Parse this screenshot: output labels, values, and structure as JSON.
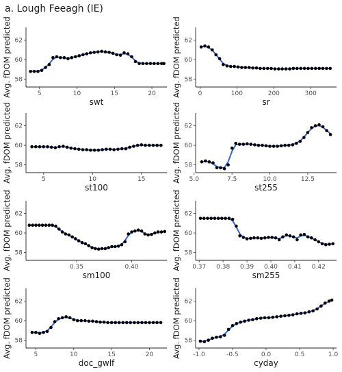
{
  "title": "a. Lough Feeagh (IE)",
  "colors": {
    "points": "#000000",
    "fit_line": "#3366dd",
    "axis": "#222222",
    "tick_text": "#4d4d4d"
  },
  "chart_data": [
    {
      "type": "scatter",
      "xlabel": "swt",
      "ylabel": "Avg. fDOM predicted",
      "xlim": [
        3.2,
        22
      ],
      "ylim": [
        57.2,
        63.3
      ],
      "xticks": [
        5,
        10,
        15,
        20
      ],
      "xtick_labels": [
        "5",
        "10",
        "15",
        "20"
      ],
      "yticks": [
        58,
        60,
        62
      ],
      "ytick_labels": [
        "58",
        "60",
        "62"
      ],
      "x": [
        3.8,
        4.3,
        4.8,
        5.3,
        5.8,
        6.3,
        6.8,
        7.3,
        7.8,
        8.3,
        8.8,
        9.3,
        9.8,
        10.3,
        10.8,
        11.3,
        11.8,
        12.3,
        12.8,
        13.3,
        13.8,
        14.3,
        14.8,
        15.3,
        15.8,
        16.3,
        16.8,
        17.3,
        17.8,
        18.3,
        18.8,
        19.3,
        19.8,
        20.3,
        20.8,
        21.3,
        21.6
      ],
      "y": [
        58.8,
        58.8,
        58.8,
        58.9,
        59.2,
        59.5,
        60.2,
        60.3,
        60.2,
        60.2,
        60.1,
        60.2,
        60.3,
        60.4,
        60.5,
        60.6,
        60.7,
        60.75,
        60.8,
        60.85,
        60.8,
        60.75,
        60.65,
        60.5,
        60.45,
        60.7,
        60.6,
        60.3,
        59.8,
        59.6,
        59.6,
        59.6,
        59.6,
        59.6,
        59.6,
        59.6,
        59.6
      ]
    },
    {
      "type": "scatter",
      "xlabel": "sr",
      "ylabel": "Avg. fDOM predicted",
      "xlim": [
        -12,
        370
      ],
      "ylim": [
        57.2,
        63.3
      ],
      "xticks": [
        0,
        100,
        200,
        300
      ],
      "xtick_labels": [
        "0",
        "100",
        "200",
        "300"
      ],
      "yticks": [
        58,
        60,
        62
      ],
      "ytick_labels": [
        "58",
        "60",
        "62"
      ],
      "x": [
        3,
        13,
        23,
        33,
        43,
        53,
        63,
        73,
        83,
        93,
        103,
        113,
        123,
        133,
        143,
        153,
        163,
        173,
        183,
        193,
        203,
        213,
        223,
        233,
        243,
        253,
        263,
        273,
        283,
        293,
        303,
        313,
        323,
        333,
        343,
        353
      ],
      "y": [
        61.3,
        61.4,
        61.3,
        61.0,
        60.5,
        60.1,
        59.5,
        59.35,
        59.3,
        59.3,
        59.25,
        59.2,
        59.2,
        59.2,
        59.15,
        59.15,
        59.1,
        59.1,
        59.1,
        59.1,
        59.05,
        59.05,
        59.05,
        59.05,
        59.05,
        59.1,
        59.1,
        59.1,
        59.1,
        59.1,
        59.1,
        59.1,
        59.1,
        59.1,
        59.1,
        59.1
      ]
    },
    {
      "type": "scatter",
      "xlabel": "st100",
      "ylabel": "Avg. fDOM predicted",
      "xlim": [
        3.2,
        17.6
      ],
      "ylim": [
        57.2,
        63.3
      ],
      "xticks": [
        5,
        10,
        15
      ],
      "xtick_labels": [
        "5",
        "10",
        "15"
      ],
      "yticks": [
        58,
        60,
        62
      ],
      "ytick_labels": [
        "58",
        "60",
        "62"
      ],
      "x": [
        3.8,
        4.2,
        4.6,
        5.0,
        5.4,
        5.8,
        6.2,
        6.6,
        7.0,
        7.4,
        7.8,
        8.2,
        8.6,
        9.0,
        9.4,
        9.8,
        10.2,
        10.6,
        11.0,
        11.4,
        11.8,
        12.2,
        12.6,
        13.0,
        13.4,
        13.8,
        14.2,
        14.6,
        15.0,
        15.4,
        15.8,
        16.2,
        16.6,
        17.0
      ],
      "y": [
        59.85,
        59.85,
        59.85,
        59.85,
        59.85,
        59.8,
        59.75,
        59.85,
        59.9,
        59.8,
        59.7,
        59.65,
        59.6,
        59.55,
        59.55,
        59.5,
        59.5,
        59.5,
        59.55,
        59.6,
        59.6,
        59.55,
        59.6,
        59.65,
        59.65,
        59.8,
        59.9,
        60.0,
        60.05,
        60.0,
        60.0,
        60.0,
        60.0,
        60.0
      ]
    },
    {
      "type": "scatter",
      "xlabel": "st255",
      "ylabel": "Avg. fDOM predicted",
      "xlim": [
        5.1,
        14.4
      ],
      "ylim": [
        57.2,
        63.3
      ],
      "xticks": [
        5,
        7.5,
        10,
        12.5
      ],
      "xtick_labels": [
        "5.0",
        "7.5",
        "10.0",
        "12.5"
      ],
      "yticks": [
        58,
        60,
        62
      ],
      "ytick_labels": [
        "58",
        "60",
        "62"
      ],
      "x": [
        5.5,
        5.75,
        6.0,
        6.25,
        6.5,
        6.75,
        7.0,
        7.25,
        7.5,
        7.75,
        8.0,
        8.25,
        8.5,
        8.75,
        9.0,
        9.25,
        9.5,
        9.75,
        10.0,
        10.25,
        10.5,
        10.75,
        11.0,
        11.25,
        11.5,
        11.75,
        12.0,
        12.25,
        12.5,
        12.75,
        13.0,
        13.25,
        13.5,
        13.75,
        14.0
      ],
      "y": [
        58.3,
        58.4,
        58.3,
        58.2,
        57.7,
        57.7,
        57.6,
        58.0,
        59.7,
        60.2,
        60.1,
        60.1,
        60.15,
        60.1,
        60.05,
        60.0,
        60.0,
        59.95,
        59.9,
        59.9,
        59.9,
        59.95,
        60.0,
        60.0,
        60.05,
        60.2,
        60.4,
        60.8,
        61.3,
        61.8,
        62.0,
        62.1,
        61.9,
        61.5,
        61.1
      ]
    },
    {
      "type": "scatter",
      "xlabel": "sm100",
      "ylabel": "Avg. fDOM predicted",
      "xlim": [
        0.304,
        0.432
      ],
      "ylim": [
        57.2,
        63.3
      ],
      "xticks": [
        0.35,
        0.4
      ],
      "xtick_labels": [
        "0.35",
        "0.40"
      ],
      "yticks": [
        58,
        60,
        62
      ],
      "ytick_labels": [
        "58",
        "60",
        "62"
      ],
      "x": [
        0.307,
        0.31,
        0.313,
        0.316,
        0.319,
        0.322,
        0.325,
        0.328,
        0.331,
        0.334,
        0.337,
        0.34,
        0.343,
        0.346,
        0.349,
        0.352,
        0.355,
        0.358,
        0.361,
        0.364,
        0.367,
        0.37,
        0.373,
        0.376,
        0.379,
        0.382,
        0.385,
        0.388,
        0.391,
        0.394,
        0.397,
        0.4,
        0.403,
        0.406,
        0.409,
        0.412,
        0.415,
        0.418,
        0.421,
        0.424,
        0.427,
        0.43
      ],
      "y": [
        60.8,
        60.8,
        60.8,
        60.8,
        60.8,
        60.8,
        60.8,
        60.8,
        60.7,
        60.4,
        60.1,
        59.9,
        59.8,
        59.6,
        59.4,
        59.2,
        59.0,
        58.9,
        58.7,
        58.5,
        58.4,
        58.35,
        58.4,
        58.4,
        58.5,
        58.6,
        58.6,
        58.65,
        58.8,
        59.1,
        59.9,
        60.1,
        60.2,
        60.3,
        60.2,
        59.9,
        59.8,
        59.85,
        60.0,
        60.1,
        60.1,
        60.15
      ]
    },
    {
      "type": "scatter",
      "xlabel": "sm255",
      "ylabel": "Avg. fDOM predicted",
      "xlim": [
        0.3685,
        0.4275
      ],
      "ylim": [
        57.2,
        63.3
      ],
      "xticks": [
        0.37,
        0.38,
        0.39,
        0.4,
        0.41,
        0.42
      ],
      "xtick_labels": [
        "0.37",
        "0.38",
        "0.39",
        "0.40",
        "0.41",
        "0.42"
      ],
      "yticks": [
        58,
        60,
        62
      ],
      "ytick_labels": [
        "58",
        "60",
        "62"
      ],
      "x": [
        0.3705,
        0.372,
        0.3735,
        0.375,
        0.3765,
        0.378,
        0.3795,
        0.381,
        0.3825,
        0.384,
        0.3855,
        0.387,
        0.3885,
        0.39,
        0.3915,
        0.393,
        0.3945,
        0.396,
        0.3975,
        0.399,
        0.4005,
        0.402,
        0.4035,
        0.405,
        0.4065,
        0.408,
        0.4095,
        0.411,
        0.4125,
        0.414,
        0.4155,
        0.417,
        0.4185,
        0.42,
        0.4215,
        0.423,
        0.4245,
        0.426
      ],
      "y": [
        61.5,
        61.5,
        61.5,
        61.5,
        61.5,
        61.5,
        61.5,
        61.5,
        61.5,
        61.4,
        60.7,
        59.7,
        59.55,
        59.4,
        59.45,
        59.5,
        59.5,
        59.45,
        59.5,
        59.55,
        59.55,
        59.5,
        59.3,
        59.6,
        59.8,
        59.7,
        59.6,
        59.3,
        59.8,
        59.85,
        59.6,
        59.5,
        59.3,
        59.1,
        58.9,
        58.8,
        58.85,
        58.9
      ]
    },
    {
      "type": "scatter",
      "xlabel": "doc_gwlf",
      "ylabel": "Avg. fDOM predicted",
      "xlim": [
        3.7,
        22.3
      ],
      "ylim": [
        57.2,
        63.3
      ],
      "xticks": [
        5,
        10,
        15,
        20
      ],
      "xtick_labels": [
        "5",
        "10",
        "15",
        "20"
      ],
      "yticks": [
        58,
        60,
        62
      ],
      "ytick_labels": [
        "58",
        "60",
        "62"
      ],
      "x": [
        4.5,
        5.0,
        5.5,
        6.0,
        6.5,
        7.0,
        7.5,
        8.0,
        8.5,
        9.0,
        9.5,
        10.0,
        10.5,
        11.0,
        11.5,
        12.0,
        12.5,
        13.0,
        13.5,
        14.0,
        14.5,
        15.0,
        15.5,
        16.0,
        16.5,
        17.0,
        17.5,
        18.0,
        18.5,
        19.0,
        19.5,
        20.0,
        20.5,
        21.0,
        21.5
      ],
      "y": [
        58.8,
        58.8,
        58.7,
        58.8,
        58.9,
        59.3,
        59.9,
        60.2,
        60.3,
        60.4,
        60.3,
        60.1,
        60.0,
        60.0,
        60.0,
        59.95,
        59.95,
        59.9,
        59.85,
        59.85,
        59.8,
        59.8,
        59.8,
        59.8,
        59.8,
        59.8,
        59.8,
        59.8,
        59.8,
        59.8,
        59.8,
        59.8,
        59.8,
        59.8,
        59.8
      ]
    },
    {
      "type": "scatter",
      "xlabel": "cyday",
      "ylabel": "Avg. fDOM predicted",
      "xlim": [
        -1.05,
        1.05
      ],
      "ylim": [
        57.2,
        63.3
      ],
      "xticks": [
        -1.0,
        -0.5,
        0.0,
        0.5,
        1.0
      ],
      "xtick_labels": [
        "-1.0",
        "-0.5",
        "0.0",
        "0.5",
        "1.0"
      ],
      "yticks": [
        58,
        60,
        62
      ],
      "ytick_labels": [
        "58",
        "60",
        "62"
      ],
      "x": [
        -0.98,
        -0.92,
        -0.86,
        -0.8,
        -0.74,
        -0.68,
        -0.62,
        -0.56,
        -0.5,
        -0.44,
        -0.38,
        -0.32,
        -0.26,
        -0.2,
        -0.14,
        -0.08,
        -0.02,
        0.04,
        0.1,
        0.16,
        0.22,
        0.28,
        0.34,
        0.4,
        0.46,
        0.52,
        0.58,
        0.64,
        0.7,
        0.76,
        0.82,
        0.88,
        0.94,
        0.98
      ],
      "y": [
        57.9,
        57.85,
        58.0,
        58.2,
        58.3,
        58.35,
        58.5,
        59.1,
        59.5,
        59.7,
        59.85,
        59.95,
        60.05,
        60.1,
        60.2,
        60.25,
        60.3,
        60.3,
        60.35,
        60.4,
        60.45,
        60.5,
        60.55,
        60.6,
        60.7,
        60.75,
        60.8,
        60.9,
        61.0,
        61.2,
        61.5,
        61.8,
        62.0,
        62.1
      ]
    }
  ]
}
